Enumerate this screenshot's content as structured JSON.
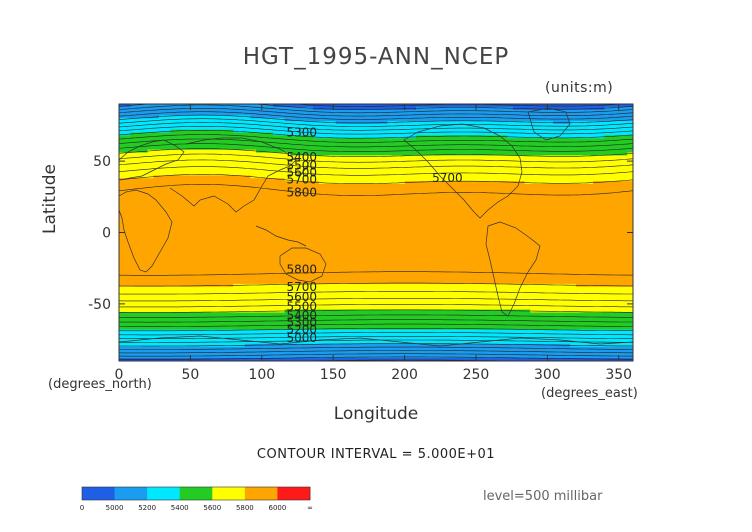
{
  "title": "HGT_1995-ANN_NCEP",
  "units": "(units:m)",
  "chart_data": {
    "type": "heatmap",
    "subtype": "filled-contour-map",
    "title": "HGT_1995-ANN_NCEP",
    "xlabel": "Longitude",
    "ylabel": "Latitude",
    "x_unit": "(degrees_east)",
    "y_unit": "(degrees_north)",
    "xlim": [
      0,
      360
    ],
    "ylim": [
      -90,
      90
    ],
    "x_ticks": [
      0,
      50,
      100,
      150,
      200,
      250,
      300,
      350
    ],
    "y_ticks": [
      50,
      0,
      -50
    ],
    "units": "m",
    "level": "level=500 millibar",
    "contour_interval": "CONTOUR INTERVAL = 5.000E+01",
    "color_levels": [
      {
        "upper": 5000,
        "color": "#1e5fe6"
      },
      {
        "upper": 5200,
        "color": "#1a9cf0"
      },
      {
        "upper": 5400,
        "color": "#00e8ff"
      },
      {
        "upper": 5600,
        "color": "#22cc22"
      },
      {
        "upper": 5800,
        "color": "#ffff00"
      },
      {
        "upper": 6000,
        "color": "#ffa500"
      },
      {
        "upper": "inf",
        "color": "#ff1a1a"
      }
    ],
    "colorbar_labels": [
      "0",
      "5000",
      "5200",
      "5400",
      "5600",
      "5800",
      "6000",
      "∞"
    ],
    "contour_labels": [
      {
        "text": "5300",
        "lon": 128,
        "lat": 70
      },
      {
        "text": "5400",
        "lon": 128,
        "lat": 53
      },
      {
        "text": "5500",
        "lon": 128,
        "lat": 47
      },
      {
        "text": "5600",
        "lon": 128,
        "lat": 42
      },
      {
        "text": "5700",
        "lon": 128,
        "lat": 37
      },
      {
        "text": "5700",
        "lon": 230,
        "lat": 38
      },
      {
        "text": "5800",
        "lon": 128,
        "lat": 28
      },
      {
        "text": "5800",
        "lon": 128,
        "lat": -26
      },
      {
        "text": "5700",
        "lon": 128,
        "lat": -38
      },
      {
        "text": "5600",
        "lon": 128,
        "lat": -45
      },
      {
        "text": "5500",
        "lon": 128,
        "lat": -52
      },
      {
        "text": "5400",
        "lon": 128,
        "lat": -58
      },
      {
        "text": "5300",
        "lon": 128,
        "lat": -63
      },
      {
        "text": "5200",
        "lon": 128,
        "lat": -68
      },
      {
        "text": "5000",
        "lon": 128,
        "lat": -74
      }
    ]
  }
}
